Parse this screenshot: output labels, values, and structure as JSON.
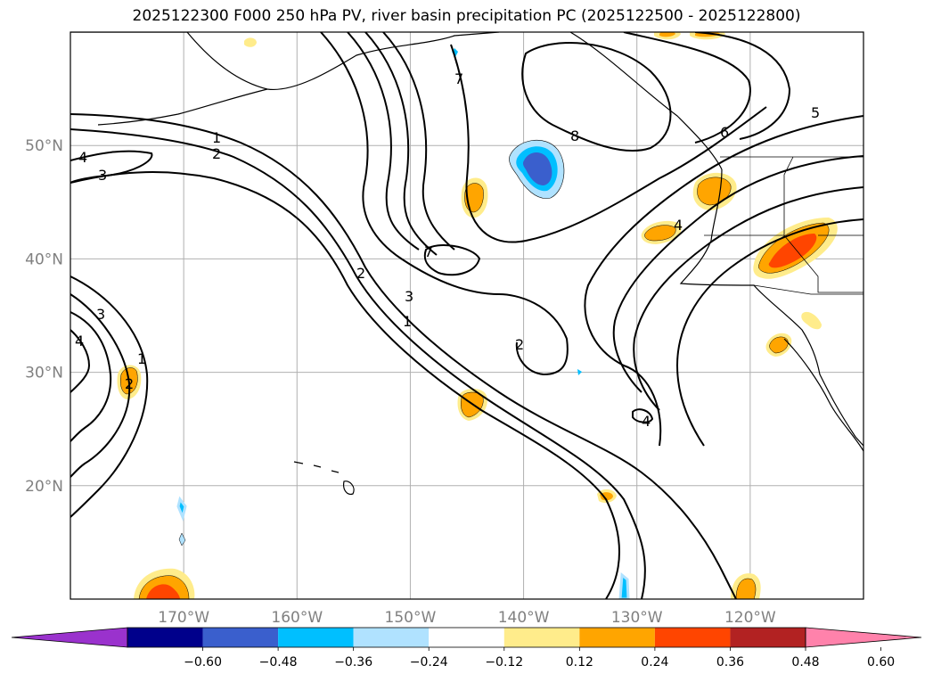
{
  "title": "2025122300 F000 250 hPa PV, river basin precipitation PC (2025122500 - 2025122800)",
  "map": {
    "lon_range": [
      -180,
      -110
    ],
    "lat_range": [
      10,
      60
    ],
    "lat_ticks": [
      {
        "value": 50,
        "label": "50°N"
      },
      {
        "value": 40,
        "label": "40°N"
      },
      {
        "value": 30,
        "label": "30°N"
      },
      {
        "value": 20,
        "label": "20°N"
      }
    ],
    "lon_ticks": [
      {
        "value": -170,
        "label": "170°W"
      },
      {
        "value": -160,
        "label": "160°W"
      },
      {
        "value": -150,
        "label": "150°W"
      },
      {
        "value": -140,
        "label": "140°W"
      },
      {
        "value": -130,
        "label": "130°W"
      },
      {
        "value": -120,
        "label": "120°W"
      }
    ],
    "grid": true,
    "contour_labels": [
      "1",
      "2",
      "3",
      "4",
      "5",
      "6",
      "7",
      "8"
    ]
  },
  "colorbar": {
    "colors": [
      "#9a32cd",
      "#00008b",
      "#3a5fcd",
      "#00bfff",
      "#b0e2ff",
      "#ffffff",
      "#ffec8b",
      "#ffa500",
      "#ff4500",
      "#b22222",
      "#ff82ab"
    ],
    "extend": "both",
    "ticks": [
      "−0.60",
      "−0.48",
      "−0.36",
      "−0.24",
      "−0.12",
      "0.12",
      "0.24",
      "0.36",
      "0.48",
      "0.60"
    ]
  }
}
